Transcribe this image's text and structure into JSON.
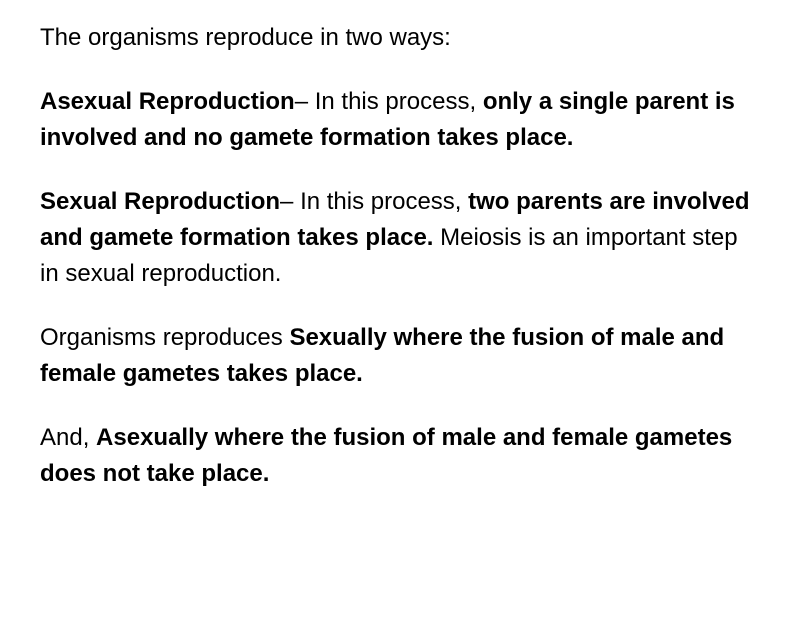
{
  "paragraphs": {
    "intro": {
      "text": "The organisms reproduce in two ways:"
    },
    "asexual": {
      "part1_bold": "Asexual Reproduction",
      "part2_regular": "– In this process, ",
      "part3_bold": "only a single parent is involved and no gamete formation takes place."
    },
    "sexual": {
      "part1_bold": "Sexual Reproduction",
      "part2_regular": "– In this process, ",
      "part3_bold": "two parents are involved and gamete formation takes place.",
      "part4_regular": " Meiosis is an important step in sexual reproduction."
    },
    "organisms_sexually": {
      "part1_regular": "Organisms reproduces ",
      "part2_bold": "Sexually where the fusion of male and female gametes takes place."
    },
    "asexually": {
      "part1_regular": "And, ",
      "part2_bold": "Asexually where the fusion of male and female gametes does not take place."
    }
  },
  "styling": {
    "background_color": "#ffffff",
    "text_color": "#000000",
    "font_size": 24,
    "line_height": 1.5,
    "paragraph_spacing": 28,
    "bold_weight": 700,
    "regular_weight": 400
  }
}
